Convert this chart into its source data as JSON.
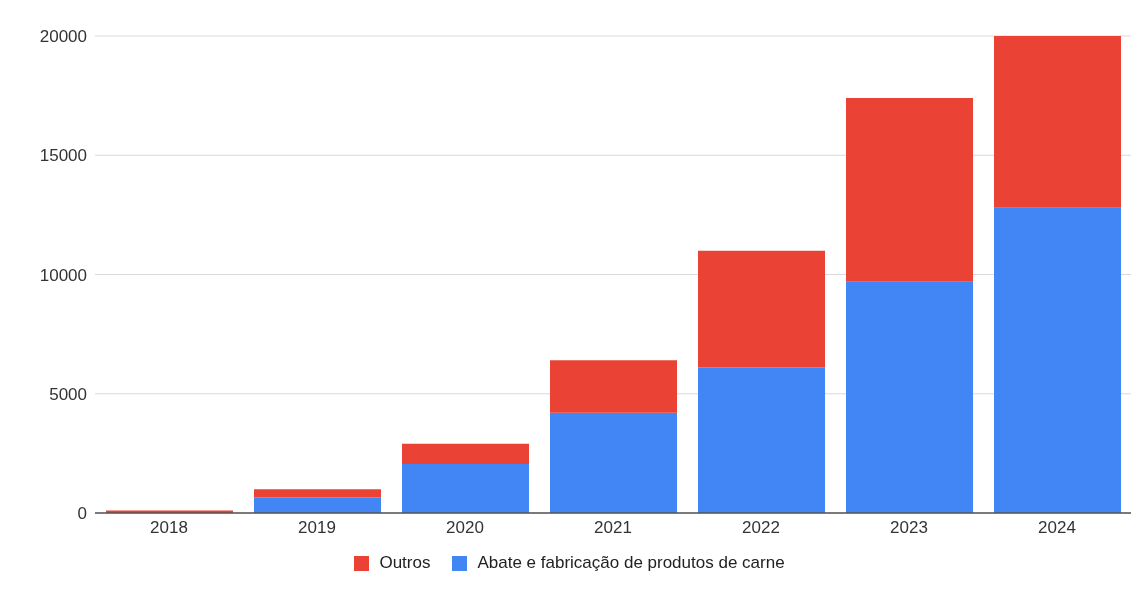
{
  "chart_data": {
    "type": "bar",
    "stacked": true,
    "categories": [
      "2018",
      "2019",
      "2020",
      "2021",
      "2022",
      "2023",
      "2024"
    ],
    "series": [
      {
        "name": "Abate e fabricação de produtos de carne",
        "color": "#4285f4",
        "values": [
          null,
          650,
          2050,
          4200,
          6100,
          9700,
          12800
        ]
      },
      {
        "name": "Outros",
        "color": "#ea4335",
        "values": [
          100,
          350,
          850,
          2200,
          4900,
          7700,
          7200
        ]
      }
    ],
    "ylim": [
      0,
      20000
    ],
    "yticks": [
      0,
      5000,
      10000,
      15000,
      20000
    ],
    "grid": "y",
    "legend": "bottom"
  }
}
